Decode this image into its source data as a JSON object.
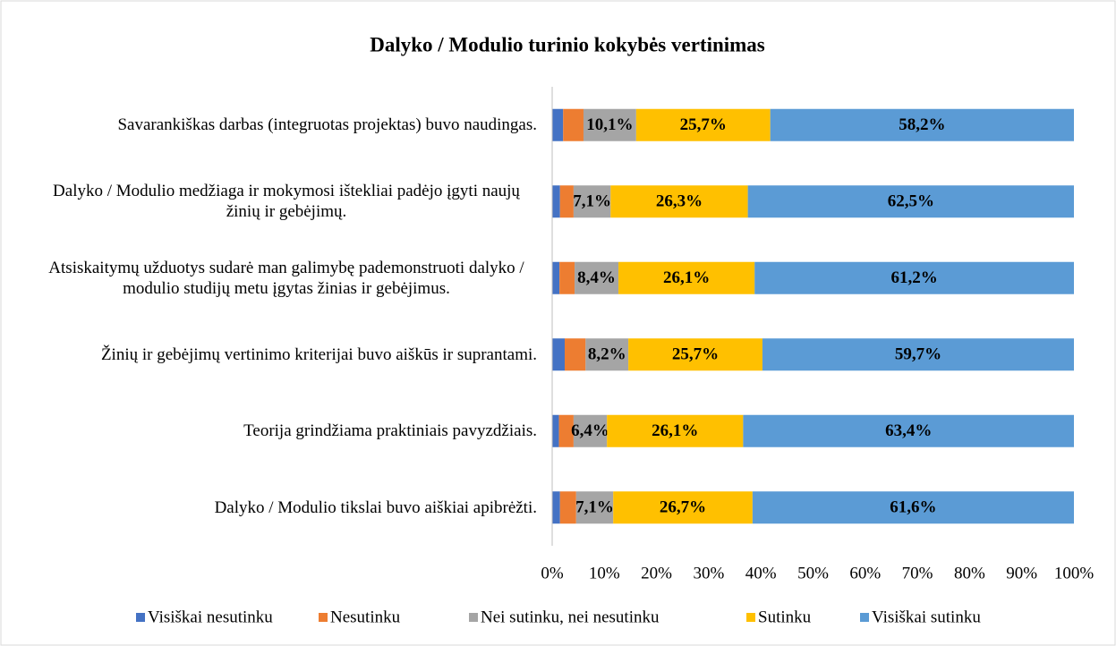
{
  "chart_data": {
    "type": "stacked-bar-horizontal",
    "title": "Dalyko / Modulio turinio kokybės vertinimas",
    "categories": [
      "Savarankiškas darbas (integruotas projektas) buvo naudingas.",
      "Dalyko / Modulio medžiaga ir mokymosi ištekliai padėjo įgyti naujų žinių ir gebėjimų.",
      "Atsiskaitymų užduotys sudarė man galimybę pademonstruoti dalyko / modulio studijų metu įgytas žinias ir gebėjimus.",
      "Žinių ir gebėjimų vertinimo kriterijai buvo aiškūs ir suprantami.",
      "Teorija grindžiama praktiniais pavyzdžiais.",
      "Dalyko / Modulio tikslai buvo aiškiai apibrėžti."
    ],
    "series": [
      {
        "name": "Visiškai nesutinku",
        "color": "#4472c4",
        "values": [
          2.1,
          1.5,
          1.4,
          2.4,
          1.3,
          1.5
        ]
      },
      {
        "name": "Nesutinku",
        "color": "#ed7d31",
        "values": [
          3.9,
          2.6,
          2.9,
          4.0,
          2.8,
          3.1
        ]
      },
      {
        "name": "Nei sutinku, nei nesutinku",
        "color": "#a5a5a5",
        "values": [
          10.1,
          7.1,
          8.4,
          8.2,
          6.4,
          7.1
        ],
        "value_labels": [
          "10,1%",
          "7,1%",
          "8,4%",
          "8,2%",
          "6,4%",
          "7,1%"
        ]
      },
      {
        "name": "Sutinku",
        "color": "#ffc000",
        "values": [
          25.7,
          26.3,
          26.1,
          25.7,
          26.1,
          26.7
        ],
        "value_labels": [
          "25,7%",
          "26,3%",
          "26,1%",
          "25,7%",
          "26,1%",
          "26,7%"
        ]
      },
      {
        "name": "Visiškai sutinku",
        "color": "#5b9bd5",
        "values": [
          58.2,
          62.5,
          61.2,
          59.7,
          63.4,
          61.6
        ],
        "value_labels": [
          "58,2%",
          "62,5%",
          "61,2%",
          "59,7%",
          "63,4%",
          "61,6%"
        ]
      }
    ],
    "xlim": [
      0,
      100
    ],
    "xticks": [
      {
        "value": 0,
        "label": "0%"
      },
      {
        "value": 10,
        "label": "10%"
      },
      {
        "value": 20,
        "label": "20%"
      },
      {
        "value": 30,
        "label": "30%"
      },
      {
        "value": 40,
        "label": "40%"
      },
      {
        "value": 50,
        "label": "50%"
      },
      {
        "value": 60,
        "label": "60%"
      },
      {
        "value": 70,
        "label": "70%"
      },
      {
        "value": 80,
        "label": "80%"
      },
      {
        "value": 90,
        "label": "90%"
      },
      {
        "value": 100,
        "label": "100%"
      }
    ],
    "grid": false,
    "legend": "bottom"
  }
}
